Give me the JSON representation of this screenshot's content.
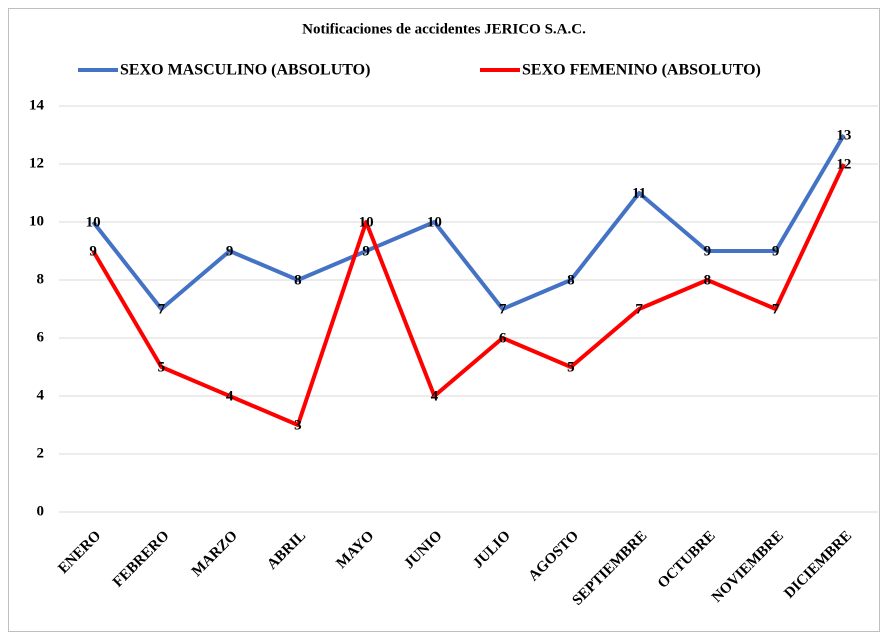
{
  "chart_data": {
    "type": "line",
    "title": "Notificaciones de accidentes JERICO S.A.C.",
    "categories": [
      "ENERO",
      "FEBRERO",
      "MARZO",
      "ABRIL",
      "MAYO",
      "JUNIO",
      "JULIO",
      "AGOSTO",
      "SEPTIEMBRE",
      "OCTUBRE",
      "NOVIEMBRE",
      "DICIEMBRE"
    ],
    "series": [
      {
        "name": "SEXO MASCULINO  (ABSOLUTO)",
        "color": "#4472c4",
        "values": [
          10,
          7,
          9,
          8,
          9,
          10,
          7,
          8,
          11,
          9,
          9,
          13
        ]
      },
      {
        "name": "SEXO FEMENINO  (ABSOLUTO)",
        "color": "#ff0000",
        "values": [
          9,
          5,
          4,
          3,
          10,
          4,
          6,
          5,
          7,
          8,
          7,
          12
        ]
      }
    ],
    "ylim": [
      0,
      14
    ],
    "yticks": [
      0,
      2,
      4,
      6,
      8,
      10,
      12,
      14
    ],
    "grid": true,
    "legend": "top"
  }
}
